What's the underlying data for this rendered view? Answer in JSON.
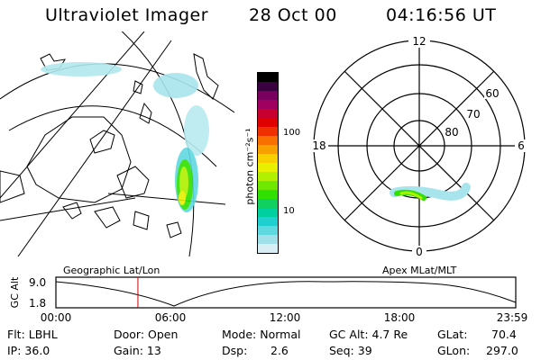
{
  "header": {
    "instrument": "Ultraviolet Imager",
    "date": "28 Oct 00",
    "time": "04:16:56 UT"
  },
  "colorbar": {
    "label": "photon cm⁻²s⁻¹",
    "ticks": [
      "100",
      "10"
    ],
    "colors": [
      "#000000",
      "#3a0040",
      "#7a0060",
      "#a00060",
      "#c80030",
      "#e00000",
      "#f03000",
      "#f87000",
      "#f8a000",
      "#f8d000",
      "#e8f000",
      "#b0f000",
      "#70e800",
      "#30e000",
      "#10d060",
      "#00d0a0",
      "#20d0d0",
      "#60d8e0",
      "#a0e0e8",
      "#d8eef4"
    ]
  },
  "geo_panel": {
    "caption": "Geographic Lat/Lon"
  },
  "polar_panel": {
    "caption": "Apex MLat/MLT",
    "mlt_labels": {
      "top": "12",
      "right": "6",
      "bottom": "0",
      "left": "18"
    },
    "lat_labels": [
      "60",
      "70",
      "80"
    ]
  },
  "altitude_plot": {
    "ylabel": "GC Alt",
    "yticks": [
      "9.0",
      "1.8"
    ],
    "xticks": [
      "00:00",
      "06:00",
      "12:00",
      "18:00",
      "23:59"
    ],
    "current_time_hours": 4.28
  },
  "status": {
    "filter": "Flt: LBHL",
    "ip": "IP: 36.0",
    "door": "Door: Open",
    "gain": "Gain: 13",
    "mode": "Mode: Normal",
    "dsp_label": "Dsp:",
    "dsp_value": "2.6",
    "gc_alt": "GC Alt: 4.7 Re",
    "seq": "Seq: 39",
    "glat_label": "GLat:",
    "glat_value": "70.4",
    "glon_label": "GLon:",
    "glon_value": "297.0"
  }
}
